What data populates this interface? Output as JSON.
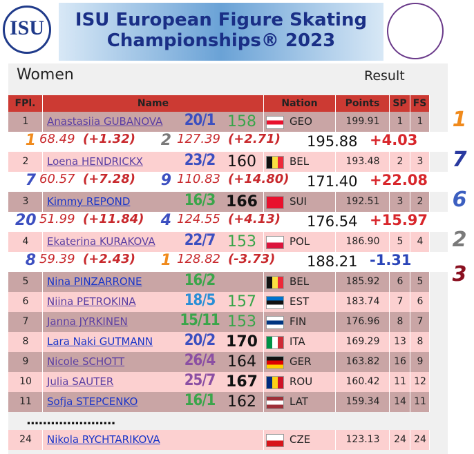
{
  "header": {
    "logo": "ISU",
    "title_line1": "ISU European Figure Skating",
    "title_line2": "Championships® 2023"
  },
  "subheader": {
    "category": "Women",
    "mode": "Result"
  },
  "table": {
    "columns": [
      "FPl.",
      "Name",
      "Nation",
      "Points",
      "SP",
      "FS"
    ],
    "rows": [
      {
        "place": "1",
        "name": "Anastasiia GUBANOVA",
        "name_color": "#5b3fa3",
        "pred": "20/1",
        "pred_color": "#3c4fc0",
        "score": "158",
        "score_color": "#3aa54a",
        "score_bold": false,
        "nation": "GEO",
        "flag": {
          "dir": "h",
          "colors": [
            "#ffffff",
            "#e8112d",
            "#ffffff"
          ]
        },
        "points": "199.91",
        "sp": "1",
        "fs": "1"
      },
      {
        "place": "2",
        "name": "Loena HENDRICKX",
        "name_color": "#5b3fa3",
        "pred": "23/2",
        "pred_color": "#3c4fc0",
        "score": "160",
        "score_color": "#111111",
        "score_bold": false,
        "nation": "BEL",
        "flag": {
          "dir": "v",
          "colors": [
            "#111111",
            "#fae042",
            "#ed2939"
          ]
        },
        "points": "193.48",
        "sp": "2",
        "fs": "3"
      },
      {
        "place": "3",
        "name": "Kimmy REPOND",
        "name_color": "#1a35c8",
        "pred": "16/3",
        "pred_color": "#3aa54a",
        "score": "166",
        "score_color": "#111111",
        "score_bold": true,
        "nation": "SUI",
        "flag": {
          "dir": "h",
          "colors": [
            "#e8112d"
          ]
        },
        "points": "192.51",
        "sp": "3",
        "fs": "2"
      },
      {
        "place": "4",
        "name": "Ekaterina KURAKOVA",
        "name_color": "#5b3fa3",
        "pred": "22/7",
        "pred_color": "#3c4fc0",
        "score": "153",
        "score_color": "#3aa54a",
        "score_bold": false,
        "nation": "POL",
        "flag": {
          "dir": "h",
          "colors": [
            "#ffffff",
            "#dc143c"
          ]
        },
        "points": "186.90",
        "sp": "5",
        "fs": "4"
      },
      {
        "place": "5",
        "name": "Nina PINZARRONE",
        "name_color": "#1a35c8",
        "pred": "16/2",
        "pred_color": "#3aa54a",
        "nation": "BEL",
        "flag": {
          "dir": "v",
          "colors": [
            "#111111",
            "#fae042",
            "#ed2939"
          ]
        },
        "points": "185.92",
        "sp": "6",
        "fs": "5"
      },
      {
        "place": "6",
        "name": "Niina PETROKINA",
        "name_color": "#5b3fa3",
        "pred": "18/5",
        "pred_color": "#2a8fd6",
        "score": "157",
        "score_color": "#3aa54a",
        "score_bold": false,
        "nation": "EST",
        "flag": {
          "dir": "h",
          "colors": [
            "#0072ce",
            "#111111",
            "#ffffff"
          ]
        },
        "points": "183.74",
        "sp": "7",
        "fs": "6"
      },
      {
        "place": "7",
        "name": "Janna JYRKINEN",
        "name_color": "#5b3fa3",
        "pred": "15/11",
        "pred_color": "#3aa54a",
        "score": "153",
        "score_color": "#3aa54a",
        "score_bold": false,
        "nation": "FIN",
        "flag": {
          "dir": "h",
          "colors": [
            "#ffffff",
            "#003580",
            "#ffffff"
          ]
        },
        "points": "176.96",
        "sp": "8",
        "fs": "7"
      },
      {
        "place": "8",
        "name": "Lara Naki GUTMANN",
        "name_color": "#1a35c8",
        "pred": "20/2",
        "pred_color": "#3c4fc0",
        "score": "170",
        "score_color": "#111111",
        "score_bold": true,
        "nation": "ITA",
        "flag": {
          "dir": "v",
          "colors": [
            "#009246",
            "#ffffff",
            "#ce2b37"
          ]
        },
        "points": "169.29",
        "sp": "13",
        "fs": "8"
      },
      {
        "place": "9",
        "name": "Nicole SCHOTT",
        "name_color": "#5b3fa3",
        "pred": "26/4",
        "pred_color": "#8b4fa3",
        "score": "164",
        "score_color": "#111111",
        "score_bold": false,
        "nation": "GER",
        "flag": {
          "dir": "h",
          "colors": [
            "#111111",
            "#dd0000",
            "#ffce00"
          ]
        },
        "points": "163.82",
        "sp": "16",
        "fs": "9"
      },
      {
        "place": "10",
        "name": "Julia SAUTER",
        "name_color": "#5b3fa3",
        "pred": "25/7",
        "pred_color": "#8b4fa3",
        "score": "167",
        "score_color": "#111111",
        "score_bold": true,
        "nation": "ROU",
        "flag": {
          "dir": "v",
          "colors": [
            "#002b7f",
            "#fcd116",
            "#ce1126"
          ]
        },
        "points": "160.42",
        "sp": "11",
        "fs": "12"
      },
      {
        "place": "11",
        "name": "Sofja STEPCENKO",
        "name_color": "#1a35c8",
        "pred": "16/1",
        "pred_color": "#3aa54a",
        "score": "162",
        "score_color": "#111111",
        "score_bold": false,
        "nation": "LAT",
        "flag": {
          "dir": "h",
          "colors": [
            "#9e3039",
            "#ffffff",
            "#9e3039"
          ]
        },
        "points": "159.34",
        "sp": "14",
        "fs": "11"
      }
    ],
    "details": [
      {
        "sp_rank": "1",
        "sp_rank_color": "#f08a1c",
        "sp_score": "68.49",
        "sp_delta": "(+1.32)",
        "fs_rank": "2",
        "fs_rank_color": "#7a7a7a",
        "fs_score": "127.39",
        "fs_delta": "(+2.71)",
        "total": "195.88",
        "total_delta": "+4.03",
        "total_delta_color": "#d8262b"
      },
      {
        "sp_rank": "7",
        "sp_rank_color": "#3c4fc0",
        "sp_score": "60.57",
        "sp_delta": "(+7.28)",
        "fs_rank": "9",
        "fs_rank_color": "#3c4fc0",
        "fs_score": "110.83",
        "fs_delta": "(+14.80)",
        "total": "171.40",
        "total_delta": "+22.08",
        "total_delta_color": "#d8262b"
      },
      {
        "sp_rank": "20",
        "sp_rank_color": "#3c4fc0",
        "sp_score": "51.99",
        "sp_delta": "(+11.84)",
        "fs_rank": "4",
        "fs_rank_color": "#3c4fc0",
        "fs_score": "124.55",
        "fs_delta": "(+4.13)",
        "total": "176.54",
        "total_delta": "+15.97",
        "total_delta_color": "#d8262b"
      },
      {
        "sp_rank": "8",
        "sp_rank_color": "#3c4fc0",
        "sp_score": "59.39",
        "sp_delta": "(+2.43)",
        "fs_rank": "1",
        "fs_rank_color": "#f08a1c",
        "fs_score": "128.82",
        "fs_delta": "(-3.73)",
        "total": "188.21",
        "total_delta": "-1.31",
        "total_delta_color": "#2a45b8"
      }
    ],
    "separator": "......................",
    "last_row": {
      "place": "24",
      "name": "Nikola RYCHTARIKOVA",
      "name_color": "#1a35c8",
      "nation": "CZE",
      "flag": {
        "dir": "h",
        "colors": [
          "#ffffff",
          "#d7141a"
        ]
      },
      "points": "123.13",
      "sp": "24",
      "fs": "24"
    }
  },
  "side_ranks": [
    {
      "text": "1",
      "color": "#f08a1c"
    },
    {
      "text": "7",
      "color": "#2a3aa0"
    },
    {
      "text": "6",
      "color": "#3c5fc0"
    },
    {
      "text": "2",
      "color": "#7a7a7a"
    },
    {
      "text": "3",
      "color": "#8a1020"
    }
  ]
}
